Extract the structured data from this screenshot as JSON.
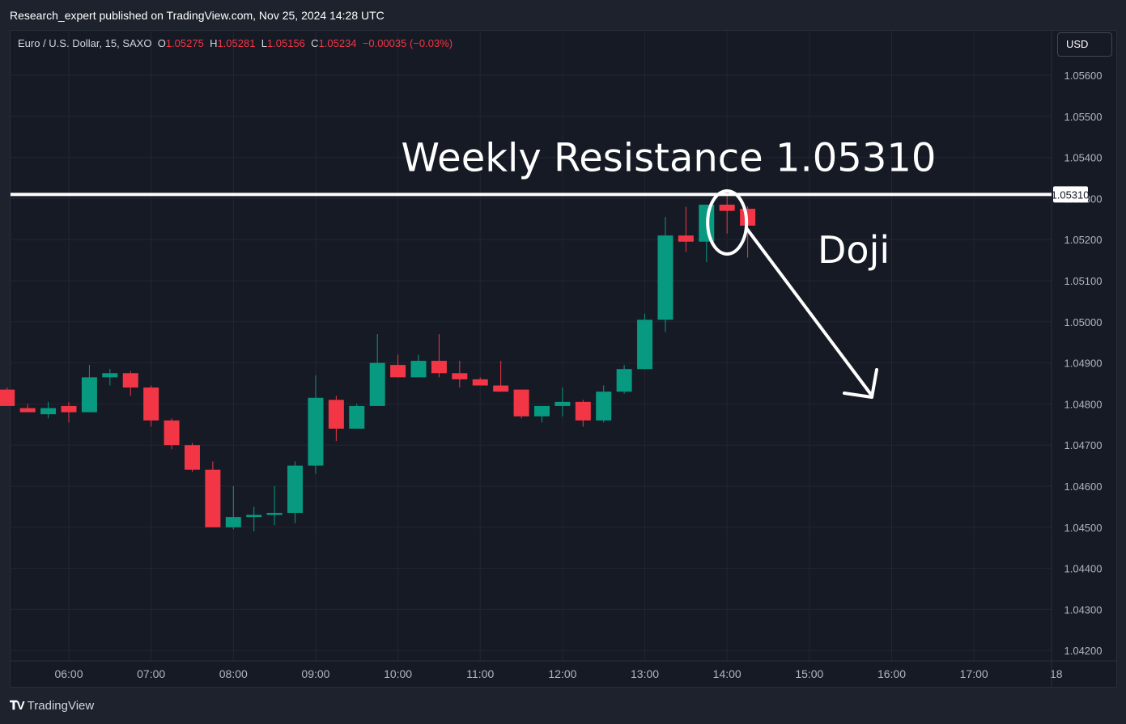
{
  "publisher": "Research_expert published on TradingView.com, Nov 25, 2024 14:28 UTC",
  "legend": {
    "symbol": "Euro / U.S. Dollar, 15, SAXO",
    "o_label": "O",
    "o_value": "1.05275",
    "h_label": "H",
    "h_value": "1.05281",
    "l_label": "L",
    "l_value": "1.05156",
    "c_label": "C",
    "c_value": "1.05234",
    "change": "−0.00035 (−0.03%)"
  },
  "currency_button": "USD",
  "footer": {
    "logo_text": "TradingView",
    "logo_icon": "tradingview-logo-icon"
  },
  "colors": {
    "background": "#161a25",
    "up": "#089981",
    "down": "#f23645",
    "grid": "#232631",
    "axis_text": "#b2b5be",
    "annotation": "#ffffff"
  },
  "chart_data": {
    "type": "candlestick",
    "symbol": "Euro / U.S. Dollar, 15, SAXO",
    "interval_minutes": 15,
    "y_ticks": [
      "1.05600",
      "1.05500",
      "1.05400",
      "1.05300",
      "1.05200",
      "1.05100",
      "1.05000",
      "1.04900",
      "1.04800",
      "1.04700",
      "1.04600",
      "1.04500",
      "1.04400",
      "1.04300",
      "1.04200"
    ],
    "ylim": [
      1.0416,
      1.0567
    ],
    "x_ticks": [
      "06:00",
      "07:00",
      "08:00",
      "09:00",
      "10:00",
      "11:00",
      "12:00",
      "13:00",
      "14:00",
      "15:00",
      "16:00",
      "17:00",
      "18"
    ],
    "grid": true,
    "candles": [
      {
        "t": "05:15",
        "o": 1.04835,
        "h": 1.0484,
        "l": 1.04795,
        "c": 1.04795
      },
      {
        "t": "05:30",
        "o": 1.0479,
        "h": 1.048,
        "l": 1.0478,
        "c": 1.0478
      },
      {
        "t": "05:45",
        "o": 1.04775,
        "h": 1.04805,
        "l": 1.04765,
        "c": 1.0479
      },
      {
        "t": "06:00",
        "o": 1.04795,
        "h": 1.04805,
        "l": 1.04755,
        "c": 1.0478
      },
      {
        "t": "06:15",
        "o": 1.0478,
        "h": 1.04895,
        "l": 1.0478,
        "c": 1.04865
      },
      {
        "t": "06:30",
        "o": 1.04865,
        "h": 1.04885,
        "l": 1.04845,
        "c": 1.04875
      },
      {
        "t": "06:45",
        "o": 1.04875,
        "h": 1.0488,
        "l": 1.0482,
        "c": 1.0484
      },
      {
        "t": "07:00",
        "o": 1.0484,
        "h": 1.04845,
        "l": 1.04745,
        "c": 1.0476
      },
      {
        "t": "07:15",
        "o": 1.0476,
        "h": 1.04765,
        "l": 1.0469,
        "c": 1.047
      },
      {
        "t": "07:30",
        "o": 1.047,
        "h": 1.04705,
        "l": 1.04635,
        "c": 1.0464
      },
      {
        "t": "07:45",
        "o": 1.0464,
        "h": 1.0466,
        "l": 1.045,
        "c": 1.045
      },
      {
        "t": "08:00",
        "o": 1.045,
        "h": 1.046,
        "l": 1.04495,
        "c": 1.04525
      },
      {
        "t": "08:15",
        "o": 1.04525,
        "h": 1.0455,
        "l": 1.0449,
        "c": 1.0453
      },
      {
        "t": "08:30",
        "o": 1.0453,
        "h": 1.046,
        "l": 1.04505,
        "c": 1.04535
      },
      {
        "t": "08:45",
        "o": 1.04535,
        "h": 1.0466,
        "l": 1.0451,
        "c": 1.0465
      },
      {
        "t": "09:00",
        "o": 1.0465,
        "h": 1.0487,
        "l": 1.0463,
        "c": 1.04815
      },
      {
        "t": "09:15",
        "o": 1.0481,
        "h": 1.0482,
        "l": 1.0471,
        "c": 1.0474
      },
      {
        "t": "09:30",
        "o": 1.0474,
        "h": 1.048,
        "l": 1.0474,
        "c": 1.04795
      },
      {
        "t": "09:45",
        "o": 1.04795,
        "h": 1.0497,
        "l": 1.04795,
        "c": 1.049
      },
      {
        "t": "10:00",
        "o": 1.04895,
        "h": 1.0492,
        "l": 1.04865,
        "c": 1.04865
      },
      {
        "t": "10:15",
        "o": 1.04865,
        "h": 1.0492,
        "l": 1.04865,
        "c": 1.04905
      },
      {
        "t": "10:30",
        "o": 1.04905,
        "h": 1.0497,
        "l": 1.04865,
        "c": 1.04875
      },
      {
        "t": "10:45",
        "o": 1.04875,
        "h": 1.04905,
        "l": 1.0484,
        "c": 1.0486
      },
      {
        "t": "11:00",
        "o": 1.0486,
        "h": 1.04865,
        "l": 1.04845,
        "c": 1.04845
      },
      {
        "t": "11:15",
        "o": 1.04845,
        "h": 1.04905,
        "l": 1.0483,
        "c": 1.0483
      },
      {
        "t": "11:30",
        "o": 1.04835,
        "h": 1.04835,
        "l": 1.04765,
        "c": 1.0477
      },
      {
        "t": "11:45",
        "o": 1.0477,
        "h": 1.04795,
        "l": 1.04755,
        "c": 1.04795
      },
      {
        "t": "12:00",
        "o": 1.04795,
        "h": 1.0484,
        "l": 1.0477,
        "c": 1.04805
      },
      {
        "t": "12:15",
        "o": 1.04805,
        "h": 1.0481,
        "l": 1.04745,
        "c": 1.0476
      },
      {
        "t": "12:30",
        "o": 1.0476,
        "h": 1.04845,
        "l": 1.04755,
        "c": 1.0483
      },
      {
        "t": "12:45",
        "o": 1.0483,
        "h": 1.04895,
        "l": 1.04825,
        "c": 1.04885
      },
      {
        "t": "13:00",
        "o": 1.04885,
        "h": 1.0502,
        "l": 1.04885,
        "c": 1.05005
      },
      {
        "t": "13:15",
        "o": 1.05005,
        "h": 1.05255,
        "l": 1.04975,
        "c": 1.0521
      },
      {
        "t": "13:30",
        "o": 1.0521,
        "h": 1.0528,
        "l": 1.0517,
        "c": 1.05195
      },
      {
        "t": "13:45",
        "o": 1.05195,
        "h": 1.05285,
        "l": 1.05145,
        "c": 1.05285
      },
      {
        "t": "14:00",
        "o": 1.05285,
        "h": 1.0531,
        "l": 1.05215,
        "c": 1.0527
      },
      {
        "t": "14:15",
        "o": 1.05275,
        "h": 1.05281,
        "l": 1.05156,
        "c": 1.05234
      }
    ],
    "resistance": {
      "value": 1.0531,
      "label": "Weekly Resistance 1.05310",
      "axis_label": "1.05310"
    },
    "annotations": [
      {
        "type": "ellipse",
        "around": "14:00"
      },
      {
        "type": "text",
        "text": "Doji"
      },
      {
        "type": "arrow",
        "direction": "down-right"
      }
    ]
  }
}
